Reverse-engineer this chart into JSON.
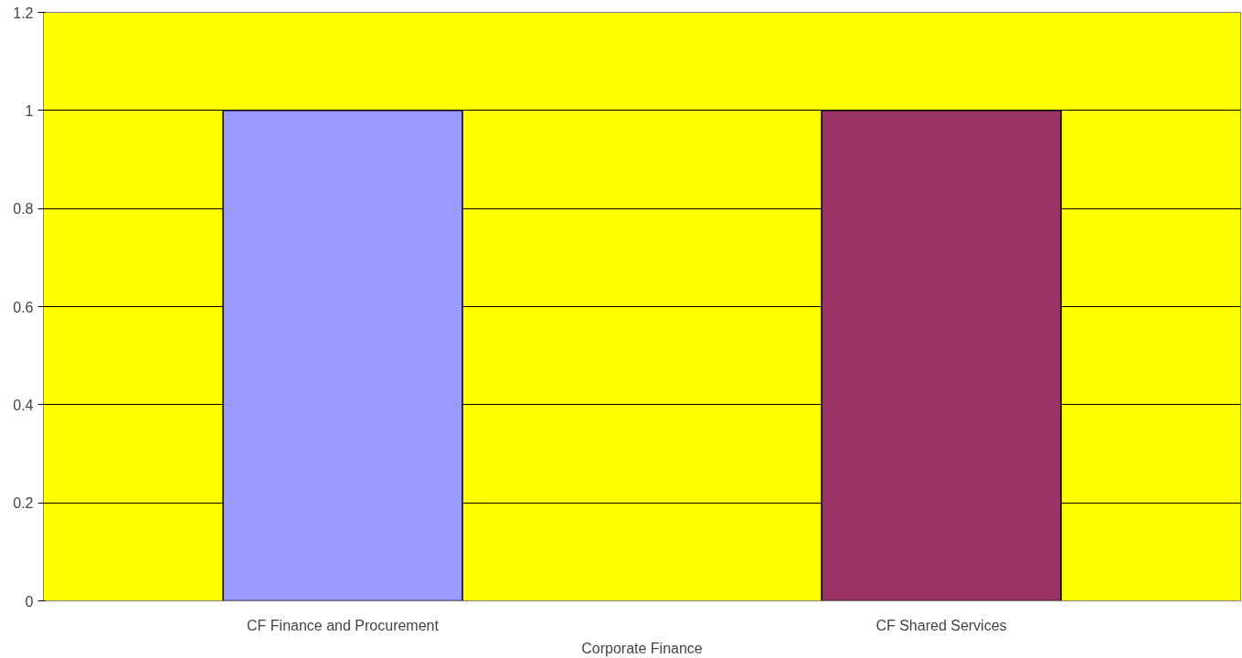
{
  "chart_data": {
    "type": "bar",
    "categories": [
      "CF Finance and Procurement",
      "CF Shared Services"
    ],
    "values": [
      1,
      1
    ],
    "colors": [
      "#9999ff",
      "#993366"
    ],
    "xlabel": "Corporate Finance",
    "ylim": [
      0,
      1.2
    ],
    "yticks": [
      0,
      0.2,
      0.4,
      0.6,
      0.8,
      1,
      1.2
    ],
    "grid": "y"
  }
}
